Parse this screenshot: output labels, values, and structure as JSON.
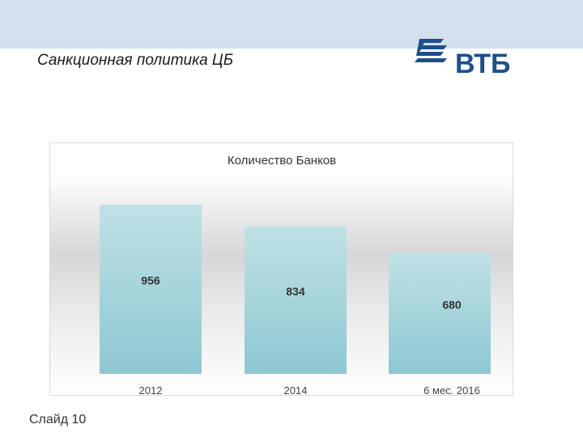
{
  "slide": {
    "title": "Санкционная политика ЦБ",
    "number_label": "Слайд 10",
    "logo_text": "ВТБ"
  },
  "colors": {
    "top_band": "#d3e0ed",
    "logo": "#1f4e8c",
    "bar_top": "#bfe1e6",
    "bar_bottom": "#8ec8d1",
    "text": "#333333"
  },
  "chart_data": {
    "type": "bar",
    "title": "Количество Банков",
    "categories": [
      "2012",
      "2014",
      "6 мес. 2016"
    ],
    "values": [
      956,
      834,
      680
    ],
    "ylim": [
      0,
      1050
    ],
    "grid": false,
    "legend": "none",
    "data_labels": true
  }
}
